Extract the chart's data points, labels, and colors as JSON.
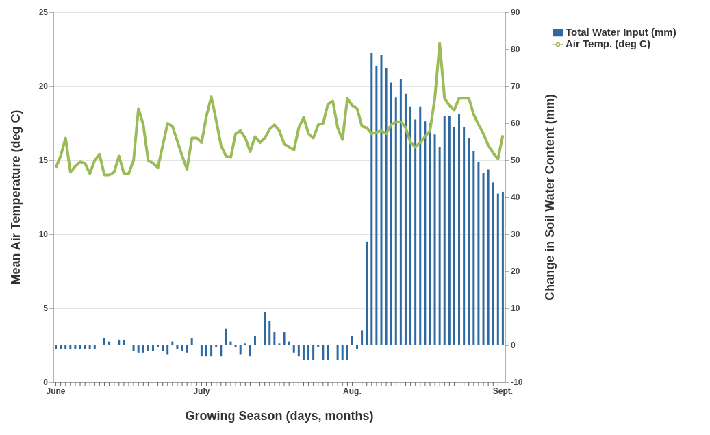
{
  "chart_data": {
    "type": "bar",
    "xlabel": "Growing Season (days, months)",
    "ylabel": "Mean Air Temperature (deg C)",
    "y2label": "Change in Soil Water Content (mm)",
    "categories": [
      "June",
      null,
      null,
      null,
      null,
      null,
      null,
      null,
      null,
      null,
      null,
      null,
      null,
      null,
      null,
      null,
      null,
      null,
      null,
      null,
      null,
      null,
      null,
      null,
      null,
      null,
      null,
      null,
      null,
      null,
      "July",
      null,
      null,
      null,
      null,
      null,
      null,
      null,
      null,
      null,
      null,
      null,
      null,
      null,
      null,
      null,
      null,
      null,
      null,
      null,
      null,
      null,
      null,
      null,
      null,
      null,
      null,
      null,
      null,
      null,
      null,
      "Aug.",
      null,
      null,
      null,
      null,
      null,
      null,
      null,
      null,
      null,
      null,
      null,
      null,
      null,
      null,
      null,
      null,
      null,
      null,
      null,
      null,
      null,
      null,
      null,
      null,
      null,
      null,
      null,
      null,
      null,
      null,
      "Sept."
    ],
    "series": [
      {
        "name": "Total Water Input (mm)",
        "axis": "y2",
        "color": "#2e6aa1",
        "values": [
          -1,
          -1,
          -1,
          -1,
          -1,
          -1,
          -1,
          -1,
          -1,
          0,
          2,
          1,
          0,
          1.5,
          1.5,
          0,
          -1.5,
          -2,
          -2,
          -1.5,
          -1.5,
          -0.5,
          -1.5,
          -2.5,
          1,
          -1,
          -1.5,
          -2,
          2,
          0,
          -3,
          -3,
          -3,
          -0.5,
          -3,
          4.5,
          1,
          -0.5,
          -2.5,
          0.5,
          -3,
          2.5,
          0,
          9,
          6.5,
          3.5,
          0.5,
          3.5,
          1,
          -2,
          -3,
          -4,
          -4,
          -4,
          -0.5,
          -4,
          -4,
          0,
          -4,
          -4,
          -4,
          2.5,
          -1,
          4,
          28,
          79,
          75.5,
          78.5,
          75,
          71,
          67,
          72,
          68,
          64.5,
          61,
          64.5,
          60.5,
          60,
          57,
          53.5,
          62,
          62,
          59,
          62.5,
          59,
          56,
          52.5,
          49.5,
          46.5,
          47.5,
          44,
          41,
          41.5
        ]
      },
      {
        "name": "Air Temp. (deg C)",
        "type": "line",
        "color": "#9bbb59",
        "values": [
          14.5,
          15.3,
          16.5,
          14.2,
          14.6,
          14.9,
          14.8,
          14.1,
          15,
          15.4,
          14,
          14,
          14.2,
          15.3,
          14.1,
          14.1,
          15,
          18.5,
          17.4,
          15,
          14.8,
          14.5,
          16,
          17.5,
          17.3,
          16.3,
          15.3,
          14.4,
          16.5,
          16.5,
          16.2,
          18,
          19.3,
          17.7,
          16,
          15.3,
          15.2,
          16.8,
          17,
          16.5,
          15.6,
          16.6,
          16.2,
          16.5,
          17.1,
          17.4,
          17,
          16.1,
          15.9,
          15.7,
          17.2,
          17.9,
          16.8,
          16.5,
          17.4,
          17.5,
          18.8,
          19,
          17.2,
          16.4,
          19.2,
          18.7,
          18.5,
          17.3,
          17.2,
          16.8,
          16.9,
          17,
          16.8,
          17.4,
          17.6,
          17.6,
          17.2,
          16.2,
          15.9,
          16.2,
          16.6,
          17,
          19.2,
          22.9,
          19.2,
          18.7,
          18.4,
          19.2,
          19.2,
          19.2,
          18.1,
          17.4,
          16.8,
          16,
          15.5,
          15.1,
          16.7
        ]
      }
    ],
    "ylim": [
      0,
      25
    ],
    "yticks": [
      0,
      5,
      10,
      15,
      20,
      25
    ],
    "y2lim": [
      -10,
      90
    ],
    "y2ticks": [
      -10,
      0,
      10,
      20,
      30,
      40,
      50,
      60,
      70,
      80,
      90
    ],
    "grid": "y",
    "legend": "top right"
  }
}
